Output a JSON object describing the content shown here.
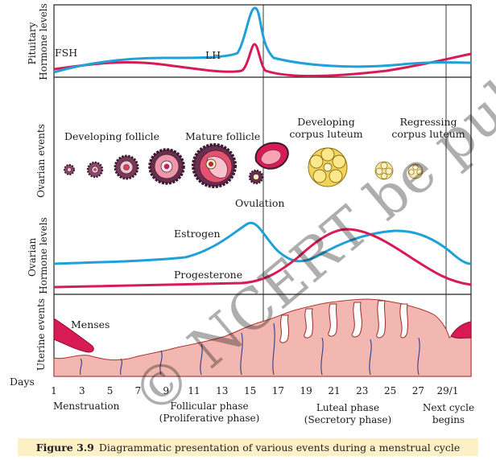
{
  "panels": {
    "pituitary": "Pituitary\nHormone levels",
    "ovarian_events": "Ovarian events",
    "ovarian_hormones": "Ovarian\nHormone levels",
    "uterine": "Uterine events"
  },
  "hormones": {
    "fsh": "FSH",
    "lh": "LH",
    "estrogen": "Estrogen",
    "progesterone": "Progesterone"
  },
  "ovarian_labels": {
    "developing_follicle": "Developing follicle",
    "mature_follicle": "Mature follicle",
    "ovulation": "Ovulation",
    "developing_corpus_luteum": [
      "Developing",
      "corpus luteum"
    ],
    "regressing_corpus_luteum": [
      "Regressing",
      "corpus luteum"
    ]
  },
  "uterine_labels": {
    "menses": "Menses"
  },
  "days_label": "Days",
  "day_ticks": [
    "1",
    "3",
    "5",
    "7",
    "9",
    "11",
    "13",
    "15",
    "17",
    "19",
    "21",
    "23",
    "25",
    "27",
    "29/1"
  ],
  "phases": {
    "menstruation": "Menstruation",
    "follicular": [
      "Follicular phase",
      "(Proliferative phase)"
    ],
    "luteal": [
      "Luteal phase",
      "(Secretory phase)"
    ],
    "next_cycle": [
      "Next cycle",
      "begins"
    ]
  },
  "caption": {
    "label": "Figure 3.9",
    "text": "Diagrammatic presentation of various events during a menstrual cycle"
  },
  "watermark": "© NCERT be published",
  "colors": {
    "lh_fsh_blue": "#1fa0d8",
    "crimson": "#d81b55",
    "follicle_dark": "#5a2b4a",
    "corpus_luteum": "#f2d45a",
    "endometrium": "#f2b7b0"
  }
}
